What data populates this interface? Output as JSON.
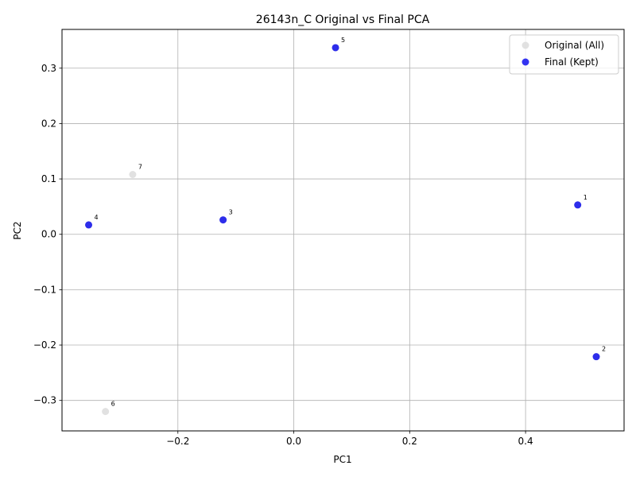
{
  "chart_data": {
    "type": "scatter",
    "title": "26143n_C Original vs Final PCA",
    "xlabel": "PC1",
    "ylabel": "PC2",
    "xlim": [
      -0.4,
      0.57
    ],
    "ylim": [
      -0.355,
      0.37
    ],
    "xticks": [
      -0.2,
      0.0,
      0.2,
      0.4
    ],
    "xtick_labels": [
      "−0.2",
      "0.0",
      "0.2",
      "0.4"
    ],
    "yticks": [
      -0.3,
      -0.2,
      -0.1,
      0.0,
      0.1,
      0.2,
      0.3
    ],
    "ytick_labels": [
      "−0.3",
      "−0.2",
      "−0.1",
      "0.0",
      "0.1",
      "0.2",
      "0.3"
    ],
    "grid": true,
    "legend_position": "top-right",
    "series": [
      {
        "name": "Original (All)",
        "color": "#d9d9d9",
        "points": [
          {
            "label": "1",
            "x": 0.49,
            "y": 0.053
          },
          {
            "label": "2",
            "x": 0.522,
            "y": -0.221
          },
          {
            "label": "3",
            "x": -0.122,
            "y": 0.026
          },
          {
            "label": "4",
            "x": -0.354,
            "y": 0.017
          },
          {
            "label": "5",
            "x": 0.072,
            "y": 0.337
          },
          {
            "label": "6",
            "x": -0.325,
            "y": -0.32
          },
          {
            "label": "7",
            "x": -0.278,
            "y": 0.108
          }
        ]
      },
      {
        "name": "Final (Kept)",
        "color": "#0000ee",
        "points": [
          {
            "label": "1",
            "x": 0.49,
            "y": 0.053
          },
          {
            "label": "2",
            "x": 0.522,
            "y": -0.221
          },
          {
            "label": "3",
            "x": -0.122,
            "y": 0.026
          },
          {
            "label": "4",
            "x": -0.354,
            "y": 0.017
          },
          {
            "label": "5",
            "x": 0.072,
            "y": 0.337
          }
        ]
      }
    ]
  }
}
